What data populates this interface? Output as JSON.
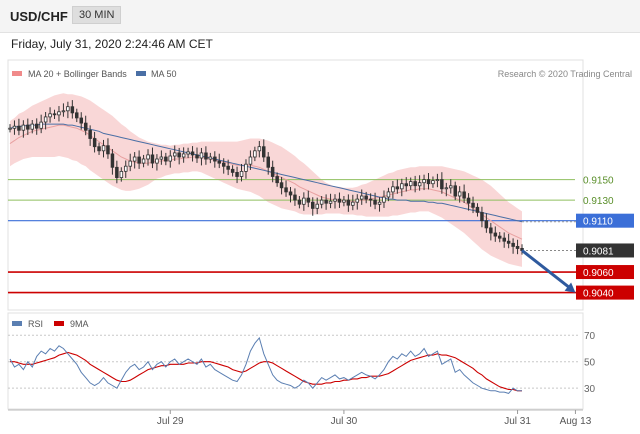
{
  "header": {
    "symbol": "USD/CHF",
    "timeframe": "30 MIN"
  },
  "datetime": "Friday, July 31, 2020 2:24:46 AM CET",
  "colors": {
    "bollinger": "#f7c9c9",
    "bollinger_legend": "#f08a8a",
    "ma20": "#e8a0a0",
    "ma50": "#4a6fa5",
    "price": "#333333",
    "support": "#cc0000",
    "resistance": "#8fbf5f",
    "pivot": "#3b6fd8",
    "current": "#333333",
    "arrow": "#2f5a9e",
    "rsi": "#5b7fb2",
    "rsi_ma": "#cc0000"
  },
  "chart_data": [
    {
      "type": "line",
      "title": "USD/CHF",
      "legend": {
        "items": [
          "MA 20 + Bollinger Bands",
          "MA 50"
        ],
        "position": "top-left"
      },
      "credit": "Research © 2020 Trading Central",
      "ylim": [
        0.9025,
        0.9245
      ],
      "xlim": [
        0,
        115
      ],
      "x_ticks": [
        {
          "x": 36,
          "label": "Jul 29"
        },
        {
          "x": 75,
          "label": "Jul 30"
        },
        {
          "x": 114,
          "label": "Jul 31"
        },
        {
          "x": 127,
          "label": "Aug 13"
        }
      ],
      "levels": [
        {
          "value": 0.915,
          "label": "0.9150",
          "kind": "resistance"
        },
        {
          "value": 0.913,
          "label": "0.9130",
          "kind": "resistance"
        },
        {
          "value": 0.911,
          "label": "0.9110",
          "kind": "pivot"
        },
        {
          "value": 0.9081,
          "label": "0.9081",
          "kind": "current"
        },
        {
          "value": 0.906,
          "label": "0.9060",
          "kind": "support"
        },
        {
          "value": 0.904,
          "label": "0.9040",
          "kind": "support"
        }
      ],
      "price": [
        0.92,
        0.9202,
        0.9198,
        0.9203,
        0.9199,
        0.9204,
        0.92,
        0.9206,
        0.9211,
        0.9214,
        0.9213,
        0.9216,
        0.9217,
        0.9221,
        0.9215,
        0.921,
        0.9205,
        0.9198,
        0.919,
        0.9182,
        0.9178,
        0.9183,
        0.9175,
        0.9162,
        0.9152,
        0.9158,
        0.9163,
        0.9168,
        0.9172,
        0.9166,
        0.917,
        0.9174,
        0.9166,
        0.917,
        0.9172,
        0.9168,
        0.9173,
        0.9176,
        0.9172,
        0.9175,
        0.9177,
        0.9174,
        0.9171,
        0.9176,
        0.917,
        0.9172,
        0.9168,
        0.9166,
        0.9163,
        0.916,
        0.9157,
        0.9153,
        0.9158,
        0.9165,
        0.9172,
        0.9178,
        0.9182,
        0.9172,
        0.9162,
        0.9153,
        0.9147,
        0.9142,
        0.9138,
        0.9135,
        0.913,
        0.9126,
        0.9132,
        0.9128,
        0.9122,
        0.9126,
        0.913,
        0.9127,
        0.9129,
        0.9131,
        0.9128,
        0.913,
        0.9125,
        0.9128,
        0.9131,
        0.9134,
        0.9131,
        0.913,
        0.9126,
        0.9128,
        0.9133,
        0.9138,
        0.9143,
        0.9141,
        0.9146,
        0.9144,
        0.9148,
        0.9144,
        0.9147,
        0.915,
        0.9146,
        0.9149,
        0.915,
        0.9141,
        0.9142,
        0.9144,
        0.9134,
        0.9138,
        0.9132,
        0.9127,
        0.9123,
        0.9118,
        0.911,
        0.9103,
        0.9098,
        0.9095,
        0.9093,
        0.909,
        0.9088,
        0.9085,
        0.9083,
        0.9081
      ],
      "ma20": [
        0.9185,
        0.9188,
        0.9191,
        0.9193,
        0.9195,
        0.9197,
        0.9198,
        0.9199,
        0.92,
        0.9201,
        0.9202,
        0.9203,
        0.9203,
        0.9202,
        0.9201,
        0.92,
        0.9198,
        0.9196,
        0.9193,
        0.919,
        0.9187,
        0.9184,
        0.9181,
        0.9178,
        0.9175,
        0.9172,
        0.917,
        0.9168,
        0.9167,
        0.9166,
        0.9166,
        0.9166,
        0.9167,
        0.9168,
        0.9168,
        0.9169,
        0.9169,
        0.917,
        0.917,
        0.9171,
        0.9171,
        0.9172,
        0.9172,
        0.9172,
        0.9171,
        0.917,
        0.9169,
        0.9168,
        0.9167,
        0.9166,
        0.9165,
        0.9164,
        0.9164,
        0.9164,
        0.9164,
        0.9163,
        0.9162,
        0.916,
        0.9158,
        0.9156,
        0.9154,
        0.9152,
        0.915,
        0.9148,
        0.9146,
        0.9143,
        0.9141,
        0.9139,
        0.9137,
        0.9135,
        0.9133,
        0.9132,
        0.9131,
        0.913,
        0.913,
        0.9129,
        0.9129,
        0.9129,
        0.9129,
        0.913,
        0.913,
        0.9131,
        0.9132,
        0.9133,
        0.9134,
        0.9135,
        0.9136,
        0.9137,
        0.9138,
        0.9139,
        0.914,
        0.914,
        0.9141,
        0.9141,
        0.9141,
        0.914,
        0.9139,
        0.9138,
        0.9136,
        0.9134,
        0.9132,
        0.913,
        0.9128,
        0.9125,
        0.9122,
        0.9119,
        0.9116,
        0.9113,
        0.911,
        0.9107,
        0.9104,
        0.9101,
        0.9098,
        0.9096,
        0.9094,
        0.9092
      ],
      "ma50": [
        0.92,
        0.9201,
        0.9202,
        0.9202,
        0.9203,
        0.9203,
        0.9203,
        0.9204,
        0.9204,
        0.9204,
        0.9204,
        0.9204,
        0.9204,
        0.9203,
        0.9203,
        0.9202,
        0.9201,
        0.92,
        0.9199,
        0.9198,
        0.9197,
        0.9195,
        0.9194,
        0.9193,
        0.9192,
        0.9191,
        0.919,
        0.9189,
        0.9188,
        0.9187,
        0.9186,
        0.9185,
        0.9184,
        0.9183,
        0.9182,
        0.9181,
        0.918,
        0.9179,
        0.9178,
        0.9177,
        0.9176,
        0.9175,
        0.9174,
        0.9173,
        0.9172,
        0.9171,
        0.917,
        0.9169,
        0.9168,
        0.9167,
        0.9166,
        0.9165,
        0.9164,
        0.9163,
        0.9162,
        0.9161,
        0.916,
        0.9159,
        0.9158,
        0.9157,
        0.9156,
        0.9155,
        0.9154,
        0.9153,
        0.9152,
        0.9151,
        0.915,
        0.9149,
        0.9148,
        0.9147,
        0.9146,
        0.9145,
        0.9144,
        0.9143,
        0.9142,
        0.9141,
        0.914,
        0.9139,
        0.9138,
        0.9137,
        0.9136,
        0.9135,
        0.9134,
        0.9133,
        0.9132,
        0.9131,
        0.9131,
        0.913,
        0.913,
        0.913,
        0.9129,
        0.9129,
        0.9129,
        0.9129,
        0.9128,
        0.9128,
        0.9127,
        0.9127,
        0.9126,
        0.9125,
        0.9124,
        0.9123,
        0.9122,
        0.9121,
        0.912,
        0.9119,
        0.9118,
        0.9117,
        0.9116,
        0.9115,
        0.9114,
        0.9113,
        0.9112,
        0.9111,
        0.911,
        0.9109
      ],
      "bb_width": [
        0.0022,
        0.0022,
        0.0023,
        0.0023,
        0.0024,
        0.0025,
        0.0026,
        0.0027,
        0.0028,
        0.0029,
        0.003,
        0.003,
        0.0031,
        0.0031,
        0.0032,
        0.0032,
        0.0033,
        0.0033,
        0.0034,
        0.0034,
        0.0034,
        0.0034,
        0.0034,
        0.0034,
        0.0033,
        0.0032,
        0.0031,
        0.0029,
        0.0027,
        0.0025,
        0.0023,
        0.0021,
        0.0019,
        0.0017,
        0.0016,
        0.0015,
        0.0014,
        0.0014,
        0.0014,
        0.0014,
        0.0014,
        0.0014,
        0.0014,
        0.0015,
        0.0016,
        0.0017,
        0.0018,
        0.0019,
        0.002,
        0.0021,
        0.0022,
        0.0023,
        0.0024,
        0.0025,
        0.0026,
        0.0027,
        0.0028,
        0.0029,
        0.003,
        0.003,
        0.003,
        0.003,
        0.0029,
        0.0028,
        0.0027,
        0.0026,
        0.0025,
        0.0023,
        0.0021,
        0.0019,
        0.0017,
        0.0015,
        0.0014,
        0.0013,
        0.0013,
        0.0013,
        0.0013,
        0.0013,
        0.0014,
        0.0015,
        0.0016,
        0.0017,
        0.0018,
        0.0019,
        0.002,
        0.0021,
        0.0021,
        0.0022,
        0.0022,
        0.0022,
        0.0022,
        0.0022,
        0.0022,
        0.0022,
        0.0022,
        0.0023,
        0.0024,
        0.0025,
        0.0026,
        0.0027,
        0.0028,
        0.0029,
        0.003,
        0.0031,
        0.0032,
        0.0033,
        0.0034,
        0.0034,
        0.0034,
        0.0033,
        0.0032,
        0.0031,
        0.003,
        0.0029,
        0.0028,
        0.0027
      ],
      "projection": {
        "from": [
          115,
          0.9081
        ],
        "to": [
          127,
          0.904
        ]
      }
    },
    {
      "type": "line",
      "title": "RSI",
      "legend": {
        "items": [
          "RSI",
          "9MA"
        ],
        "position": "top-left"
      },
      "ylim": [
        15,
        80
      ],
      "y_ticks": [
        30,
        50,
        70
      ],
      "rsi": [
        52,
        46,
        48,
        44,
        50,
        46,
        54,
        58,
        56,
        60,
        58,
        62,
        60,
        56,
        52,
        48,
        42,
        38,
        34,
        32,
        34,
        38,
        34,
        32,
        30,
        36,
        42,
        46,
        48,
        44,
        46,
        50,
        44,
        48,
        50,
        46,
        50,
        52,
        48,
        50,
        52,
        50,
        48,
        52,
        46,
        48,
        44,
        42,
        40,
        38,
        36,
        35,
        40,
        48,
        58,
        64,
        68,
        56,
        48,
        40,
        36,
        34,
        33,
        32,
        30,
        32,
        36,
        34,
        30,
        34,
        38,
        36,
        38,
        40,
        37,
        38,
        36,
        38,
        40,
        42,
        40,
        39,
        37,
        40,
        44,
        50,
        54,
        52,
        56,
        54,
        58,
        54,
        56,
        60,
        54,
        56,
        58,
        48,
        50,
        52,
        42,
        44,
        40,
        37,
        34,
        32,
        30,
        29,
        28,
        28,
        27,
        27,
        26,
        30,
        28,
        28
      ],
      "ma9": [
        50,
        50,
        49,
        48,
        48,
        48,
        49,
        50,
        51,
        52,
        53,
        55,
        56,
        57,
        56,
        55,
        53,
        51,
        48,
        46,
        44,
        42,
        40,
        38,
        36,
        35,
        35,
        36,
        38,
        40,
        42,
        44,
        45,
        46,
        47,
        47,
        48,
        48,
        48,
        48,
        49,
        49,
        49,
        50,
        50,
        50,
        49,
        48,
        47,
        46,
        44,
        43,
        42,
        43,
        45,
        47,
        49,
        50,
        50,
        49,
        47,
        45,
        43,
        41,
        39,
        37,
        35,
        34,
        33,
        33,
        33,
        34,
        34,
        35,
        35,
        36,
        36,
        37,
        37,
        38,
        38,
        39,
        39,
        39,
        40,
        41,
        43,
        45,
        47,
        49,
        51,
        52,
        53,
        54,
        55,
        55,
        56,
        55,
        55,
        54,
        53,
        51,
        49,
        47,
        45,
        42,
        40,
        37,
        35,
        33,
        31,
        30,
        29,
        29,
        28,
        28
      ]
    }
  ]
}
